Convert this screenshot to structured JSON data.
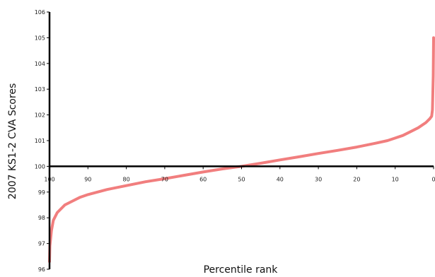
{
  "chart_data": {
    "type": "line",
    "title": "",
    "xlabel": "Percentile rank",
    "ylabel": "2007 KS1-2 CVA Scores",
    "xlim": [
      100,
      0
    ],
    "ylim": [
      96,
      106
    ],
    "x_axis_crosses_y_at": 100,
    "grid": false,
    "x_ticks": [
      100,
      90,
      80,
      70,
      60,
      50,
      40,
      30,
      20,
      10,
      0
    ],
    "x_tick_labels": [
      "100",
      "90",
      "80",
      "70",
      "60",
      "50",
      "40",
      "30",
      "20",
      "10",
      "0"
    ],
    "y_ticks": [
      96,
      97,
      98,
      99,
      100,
      101,
      102,
      103,
      104,
      105,
      106
    ],
    "y_tick_labels": [
      "96",
      "97",
      "98",
      "99",
      "100",
      "101",
      "102",
      "103",
      "104",
      "105",
      "106"
    ],
    "series": [
      {
        "color": "#f07070",
        "x": [
          100,
          99.9,
          99.5,
          99,
          98,
          96,
          94,
          92,
          90,
          85,
          80,
          75,
          70,
          65,
          60,
          55,
          50,
          45,
          40,
          35,
          30,
          25,
          20,
          15,
          12,
          10,
          8,
          6,
          4,
          2,
          1,
          0.5,
          0.3,
          0.1,
          0
        ],
        "y": [
          96.3,
          96.9,
          97.5,
          97.9,
          98.2,
          98.5,
          98.65,
          98.8,
          98.9,
          99.1,
          99.25,
          99.4,
          99.52,
          99.65,
          99.78,
          99.9,
          100.0,
          100.12,
          100.25,
          100.37,
          100.5,
          100.62,
          100.75,
          100.9,
          101.0,
          101.1,
          101.2,
          101.35,
          101.5,
          101.7,
          101.85,
          101.95,
          102.2,
          103.5,
          105.0
        ]
      }
    ]
  }
}
